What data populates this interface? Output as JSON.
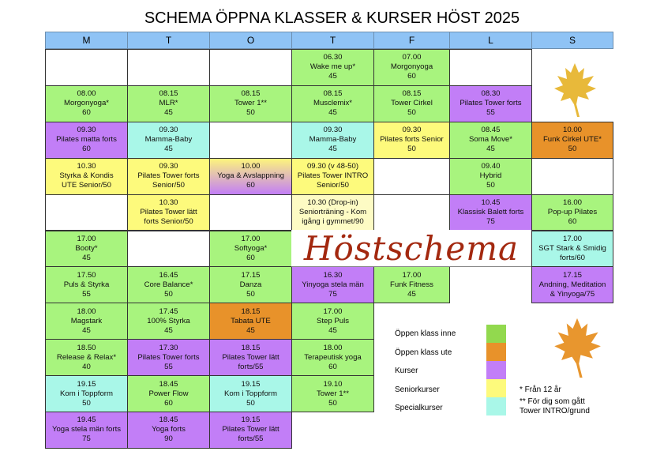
{
  "title": "SCHEMA ÖPPNA KLASSER & KURSER HÖST 2025",
  "days": [
    "M",
    "T",
    "O",
    "T",
    "F",
    "L",
    "S"
  ],
  "colors": {
    "header": "#8fc3f5",
    "green": "#a8f47e",
    "orange": "#e8922a",
    "purple": "#c27ef7",
    "yellow": "#fdfa7c",
    "cyan": "#a9f7e8",
    "light_yellow": "#fdfbc4",
    "empty": "#ffffff",
    "banner_text": "#a3280f",
    "leaf_top": "#e8b93a",
    "leaf_bottom": "#e8962e"
  },
  "schedule": [
    {
      "day": 0,
      "cells": [
        {
          "row": 0,
          "type": "empty",
          "lines": []
        },
        {
          "row": 1,
          "type": "green",
          "lines": [
            "08.00",
            "Morgonyoga*",
            "60"
          ]
        },
        {
          "row": 2,
          "type": "purple",
          "lines": [
            "09.30",
            "Pilates matta forts",
            "60"
          ]
        },
        {
          "row": 3,
          "type": "yellow",
          "lines": [
            "10.30",
            "Styrka & Kondis",
            "UTE Senior/50"
          ]
        },
        {
          "row": 4,
          "type": "empty",
          "lines": []
        },
        {
          "row": 5,
          "type": "green",
          "lines": [
            "17.00",
            "Booty*",
            "45"
          ]
        },
        {
          "row": 6,
          "type": "green",
          "lines": [
            "17.50",
            "Puls & Styrka",
            "55"
          ]
        },
        {
          "row": 7,
          "type": "green",
          "lines": [
            "18.00",
            "Magstark",
            "45"
          ]
        },
        {
          "row": 8,
          "type": "green",
          "lines": [
            "18.50",
            "Release & Relax*",
            "40"
          ]
        },
        {
          "row": 9,
          "type": "cyan",
          "lines": [
            "19.15",
            "Kom i Toppform",
            "50"
          ]
        },
        {
          "row": 10,
          "type": "purple",
          "lines": [
            "19.45",
            "Yoga stela män forts",
            "75"
          ]
        }
      ]
    },
    {
      "day": 1,
      "cells": [
        {
          "row": 0,
          "type": "empty",
          "lines": []
        },
        {
          "row": 1,
          "type": "green",
          "lines": [
            "08.15",
            "MLR*",
            "45"
          ]
        },
        {
          "row": 2,
          "type": "cyan",
          "lines": [
            "09.30",
            "Mamma-Baby",
            "45"
          ]
        },
        {
          "row": 3,
          "type": "yellow",
          "lines": [
            "09.30",
            "Pilates Tower forts",
            "Senior/50"
          ]
        },
        {
          "row": 4,
          "type": "yellow",
          "lines": [
            "10.30",
            "Pilates Tower lätt",
            "forts Senior/50"
          ]
        },
        {
          "row": 5,
          "type": "empty",
          "lines": []
        },
        {
          "row": 6,
          "type": "green",
          "lines": [
            "16.45",
            "Core Balance*",
            "50"
          ]
        },
        {
          "row": 7,
          "type": "green",
          "lines": [
            "17.45",
            "100% Styrka",
            "45"
          ]
        },
        {
          "row": 8,
          "type": "purple",
          "lines": [
            "17.30",
            "Pilates Tower forts",
            "55"
          ]
        },
        {
          "row": 9,
          "type": "green",
          "lines": [
            "18.45",
            "Power Flow",
            "60"
          ]
        },
        {
          "row": 10,
          "type": "purple",
          "lines": [
            "18.45",
            "Yoga forts",
            "90"
          ]
        }
      ]
    },
    {
      "day": 2,
      "cells": [
        {
          "row": 0,
          "type": "empty",
          "lines": []
        },
        {
          "row": 1,
          "type": "green",
          "lines": [
            "08.15",
            "Tower 1**",
            "50"
          ]
        },
        {
          "row": 2,
          "type": "empty",
          "lines": []
        },
        {
          "row": 3,
          "type": "gradient",
          "lines": [
            "10.00",
            "Yoga & Avslappning",
            "60"
          ]
        },
        {
          "row": 4,
          "type": "empty",
          "lines": []
        },
        {
          "row": 5,
          "type": "green",
          "lines": [
            "17.00",
            "Softyoga*",
            "60"
          ]
        },
        {
          "row": 6,
          "type": "green",
          "lines": [
            "17.15",
            "Danza",
            "50"
          ]
        },
        {
          "row": 7,
          "type": "orange",
          "lines": [
            "18.15",
            "Tabata UTE",
            "45"
          ]
        },
        {
          "row": 8,
          "type": "purple",
          "lines": [
            "18.15",
            "Pilates Tower lätt",
            "forts/55"
          ]
        },
        {
          "row": 9,
          "type": "cyan",
          "lines": [
            "19.15",
            "Kom i Toppform",
            "50"
          ]
        },
        {
          "row": 10,
          "type": "purple",
          "lines": [
            "19.15",
            "Pilates Tower lätt",
            "forts/55"
          ]
        }
      ]
    },
    {
      "day": 3,
      "cells": [
        {
          "row": 0,
          "type": "green",
          "lines": [
            "06.30",
            "Wake me up*",
            "45"
          ]
        },
        {
          "row": 1,
          "type": "green",
          "lines": [
            "08.15",
            "Musclemix*",
            "45"
          ]
        },
        {
          "row": 2,
          "type": "cyan",
          "lines": [
            "09.30",
            "Mamma-Baby",
            "45"
          ]
        },
        {
          "row": 3,
          "type": "yellow",
          "lines": [
            "09.30 (v 48-50)",
            "Pilates Tower INTRO",
            "Senior/50"
          ]
        },
        {
          "row": 4,
          "type": "light_yellow",
          "lines": [
            "10.30 (Drop-in)",
            "Seniorträning - Kom",
            "igång i gymmet/90"
          ]
        },
        {
          "row": 6,
          "type": "purple",
          "lines": [
            "16.30",
            "Yinyoga stela män",
            "75"
          ]
        },
        {
          "row": 7,
          "type": "green",
          "lines": [
            "17.00",
            "Step Puls",
            "45"
          ]
        },
        {
          "row": 8,
          "type": "green",
          "lines": [
            "18.00",
            "Terapeutisk yoga",
            "60"
          ]
        },
        {
          "row": 9,
          "type": "green",
          "lines": [
            "19.10",
            "Tower 1**",
            "50"
          ]
        }
      ]
    },
    {
      "day": 4,
      "cells": [
        {
          "row": 0,
          "type": "green",
          "lines": [
            "07.00",
            "Morgonyoga",
            "60"
          ]
        },
        {
          "row": 1,
          "type": "green",
          "lines": [
            "08.15",
            "Tower Cirkel",
            "50"
          ]
        },
        {
          "row": 2,
          "type": "yellow",
          "lines": [
            "09.30",
            "Pilates forts Senior",
            "50"
          ]
        },
        {
          "row": 3,
          "type": "empty",
          "lines": []
        },
        {
          "row": 4,
          "type": "empty",
          "lines": []
        },
        {
          "row": 6,
          "type": "green",
          "lines": [
            "17.00",
            "Funk Fitness",
            "45"
          ]
        }
      ]
    },
    {
      "day": 5,
      "cells": [
        {
          "row": 0,
          "type": "empty",
          "lines": []
        },
        {
          "row": 1,
          "type": "purple",
          "lines": [
            "08.30",
            "Pilates Tower forts",
            "55"
          ]
        },
        {
          "row": 2,
          "type": "green",
          "lines": [
            "08.45",
            "Soma Move*",
            "45"
          ]
        },
        {
          "row": 3,
          "type": "green",
          "lines": [
            "09.40",
            "Hybrid",
            "50"
          ]
        },
        {
          "row": 4,
          "type": "purple",
          "lines": [
            "10.45",
            "Klassisk Balett forts",
            "75"
          ]
        }
      ]
    },
    {
      "day": 6,
      "cells": [
        {
          "row": 2,
          "type": "orange",
          "lines": [
            "10.00",
            "Funk Cirkel UTE*",
            "50"
          ]
        },
        {
          "row": 3,
          "type": "empty",
          "lines": []
        },
        {
          "row": 4,
          "type": "green",
          "lines": [
            "16.00",
            "Pop-up Pilates",
            "60"
          ]
        },
        {
          "row": 5,
          "type": "cyan",
          "lines": [
            "17.00",
            "SGT Stark & Smidig",
            "forts/60"
          ]
        },
        {
          "row": 6,
          "type": "purple",
          "lines": [
            "17.15",
            "Andning, Meditation",
            "& Yinyoga/75"
          ]
        }
      ]
    }
  ],
  "banner": "Höstschema",
  "legend": [
    {
      "label": "Öppen klass inne",
      "color": "#92d94e"
    },
    {
      "label": "Öppen klass ute",
      "color": "#e8922a"
    },
    {
      "label": "Kurser",
      "color": "#c27ef7"
    },
    {
      "label": "Seniorkurser",
      "color": "#fdfa7c"
    },
    {
      "label": "Specialkurser",
      "color": "#a9f7e8"
    }
  ],
  "notes": [
    "* Från 12 år",
    "** För dig som gått",
    "Tower INTRO/grund"
  ]
}
